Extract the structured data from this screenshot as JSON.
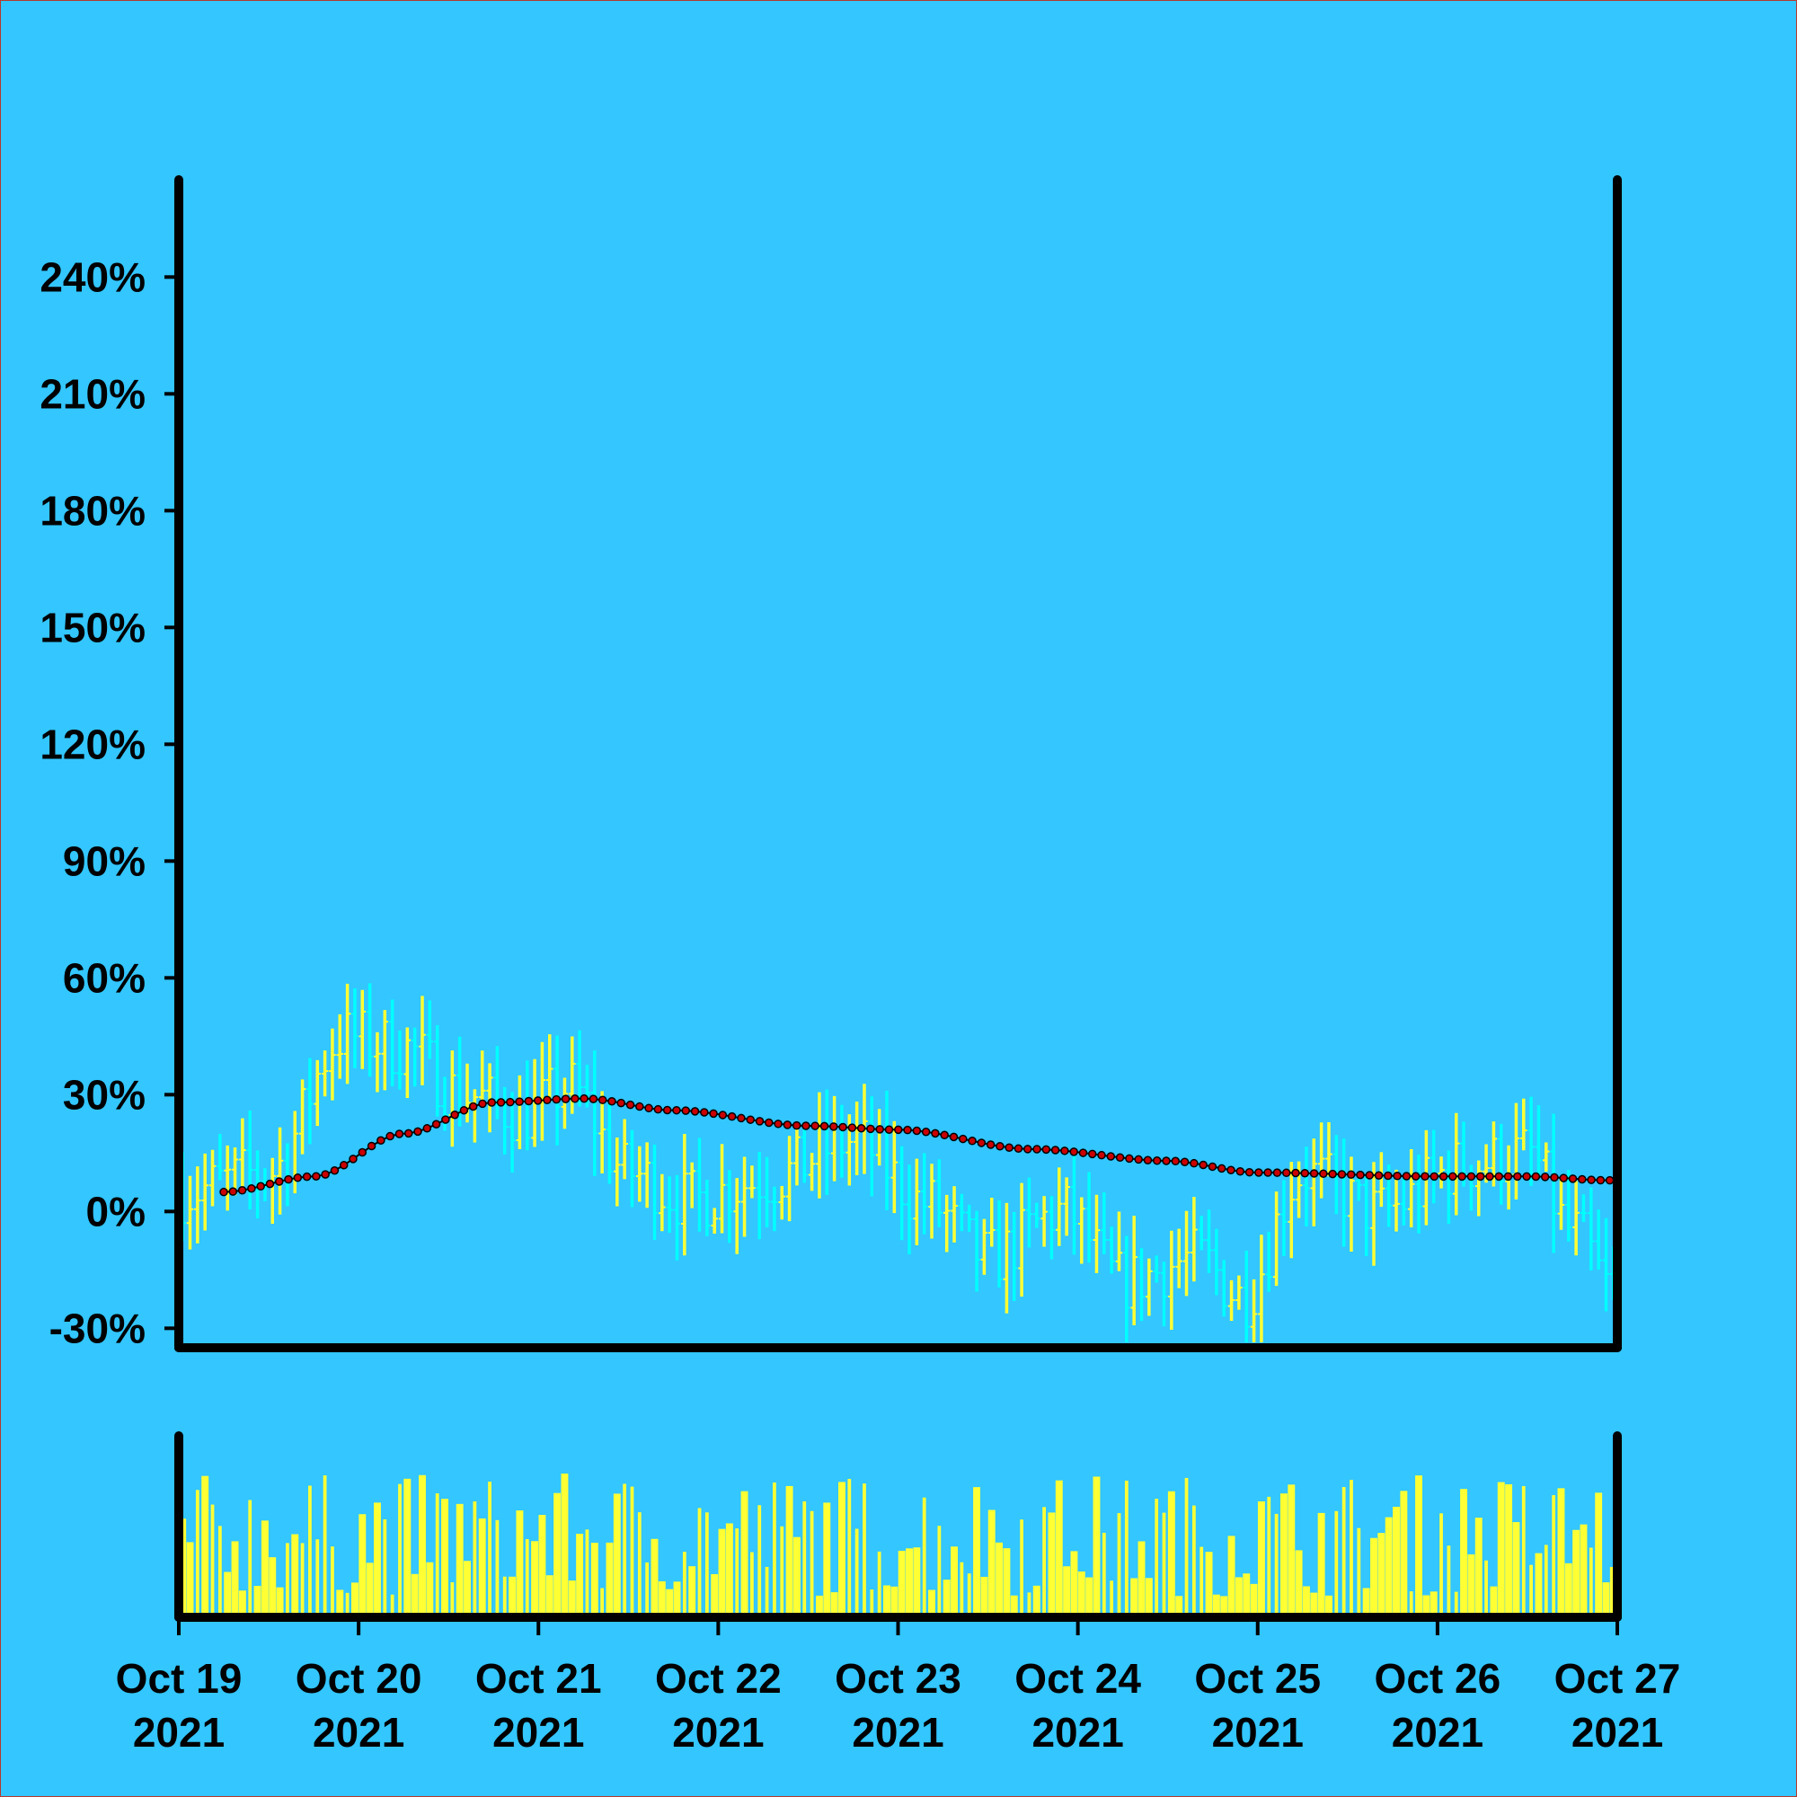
{
  "colors": {
    "background": "#33c6ff",
    "axis": "#000000",
    "up_bar": "#ffff33",
    "down_bar": "#00ffff",
    "trend_line": "#000000",
    "trend_dot": "#cc0000",
    "volume": "#ffff33"
  },
  "chart_data": {
    "type": "ohlc",
    "x_axis": {
      "type": "date",
      "start": "2021-10-19T00:00",
      "end": "2021-10-27T00:00",
      "ticks": [
        {
          "line1": "Oct 19",
          "line2": "2021"
        },
        {
          "line1": "Oct 20",
          "line2": "2021"
        },
        {
          "line1": "Oct 21",
          "line2": "2021"
        },
        {
          "line1": "Oct 22",
          "line2": "2021"
        },
        {
          "line1": "Oct 23",
          "line2": "2021"
        },
        {
          "line1": "Oct 24",
          "line2": "2021"
        },
        {
          "line1": "Oct 25",
          "line2": "2021"
        },
        {
          "line1": "Oct 26",
          "line2": "2021"
        },
        {
          "line1": "Oct 27",
          "line2": "2021"
        }
      ]
    },
    "y_axis": {
      "unit": "%",
      "range": [
        -35,
        265
      ],
      "ticks": [
        "-30%",
        "0%",
        "30%",
        "60%",
        "90%",
        "120%",
        "150%",
        "180%",
        "210%",
        "240%"
      ],
      "tick_values": [
        -30,
        0,
        30,
        60,
        90,
        120,
        150,
        180,
        210,
        240
      ]
    },
    "price_series": {
      "name": "",
      "interval_hours": 1,
      "count": 192,
      "trend_keypoints_pct": [
        {
          "t": "2021-10-19T06:00",
          "v": 5
        },
        {
          "t": "2021-10-19T18:00",
          "v": 9
        },
        {
          "t": "2021-10-20T06:00",
          "v": 20
        },
        {
          "t": "2021-10-20T18:00",
          "v": 28
        },
        {
          "t": "2021-10-21T06:00",
          "v": 29
        },
        {
          "t": "2021-10-21T18:00",
          "v": 26
        },
        {
          "t": "2021-10-22T12:00",
          "v": 22
        },
        {
          "t": "2021-10-23T00:00",
          "v": 21
        },
        {
          "t": "2021-10-23T18:00",
          "v": 16
        },
        {
          "t": "2021-10-24T12:00",
          "v": 13
        },
        {
          "t": "2021-10-25T00:00",
          "v": 10
        },
        {
          "t": "2021-10-26T00:00",
          "v": 9
        },
        {
          "t": "2021-10-26T12:00",
          "v": 9
        },
        {
          "t": "2021-10-26T23:00",
          "v": 8
        }
      ],
      "close_keypoints_pct": [
        {
          "t": "2021-10-19T00:00",
          "v": 5
        },
        {
          "t": "2021-10-19T12:00",
          "v": 10
        },
        {
          "t": "2021-10-19T22:00",
          "v": 45
        },
        {
          "t": "2021-10-20T06:00",
          "v": 42
        },
        {
          "t": "2021-10-20T14:00",
          "v": 30
        },
        {
          "t": "2021-10-20T22:00",
          "v": 25
        },
        {
          "t": "2021-10-21T04:00",
          "v": 32
        },
        {
          "t": "2021-10-21T12:00",
          "v": 10
        },
        {
          "t": "2021-10-21T20:00",
          "v": 3
        },
        {
          "t": "2021-10-22T06:00",
          "v": 8
        },
        {
          "t": "2021-10-22T18:00",
          "v": 18
        },
        {
          "t": "2021-10-23T04:00",
          "v": 2
        },
        {
          "t": "2021-10-23T12:00",
          "v": -12
        },
        {
          "t": "2021-10-23T22:00",
          "v": 0
        },
        {
          "t": "2021-10-24T06:00",
          "v": -18
        },
        {
          "t": "2021-10-24T16:00",
          "v": -12
        },
        {
          "t": "2021-10-24T22:00",
          "v": -22
        },
        {
          "t": "2021-10-25T06:00",
          "v": 10
        },
        {
          "t": "2021-10-25T16:00",
          "v": 0
        },
        {
          "t": "2021-10-26T04:00",
          "v": 12
        },
        {
          "t": "2021-10-26T12:00",
          "v": 15
        },
        {
          "t": "2021-10-26T18:00",
          "v": -5
        },
        {
          "t": "2021-10-27T00:00",
          "v": -22
        }
      ]
    },
    "volume_panel": {
      "relative_scale": true
    }
  }
}
